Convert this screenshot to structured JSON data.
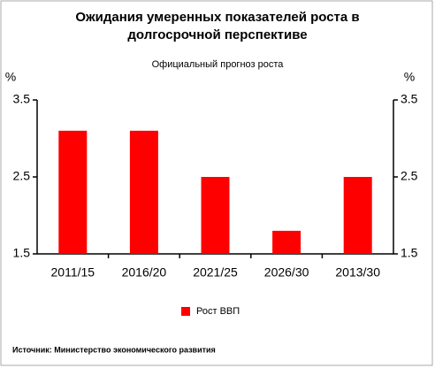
{
  "chart_data": {
    "type": "bar",
    "title": [
      "Ожидания умеренных показателей роста в",
      "долгосрочной перспективе"
    ],
    "subtitle": "Официальный прогноз роста",
    "ylabel": "%",
    "y2label": "%",
    "categories": [
      "2011/15",
      "2016/20",
      "2021/25",
      "2026/30",
      "2013/30"
    ],
    "series": [
      {
        "name": "Рост ВВП",
        "color": "#ff0000",
        "values": [
          3.1,
          3.1,
          2.5,
          1.8,
          2.5
        ]
      }
    ],
    "ylim": [
      1.5,
      3.5
    ],
    "yticks": [
      1.5,
      2.5,
      3.5
    ],
    "y2lim": [
      1.5,
      3.5
    ],
    "y2ticks": [
      1.5,
      2.5,
      3.5
    ],
    "legend": "bottom",
    "source": "Источник: Министерство экономического развития"
  }
}
